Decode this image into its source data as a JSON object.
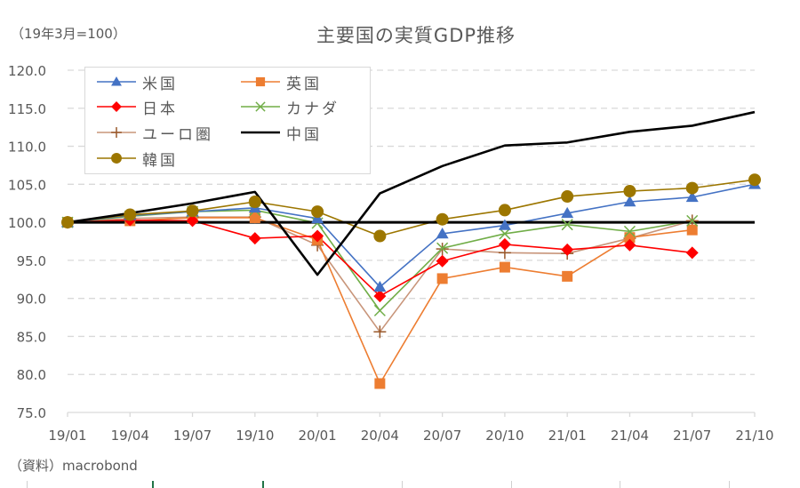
{
  "chart_data": {
    "type": "line",
    "title": "主要国の実質GDP推移",
    "unit_label": "（19年3月=100）",
    "source": "（資料）macrobond",
    "xlabel": "",
    "ylabel": "",
    "categories": [
      "19/01",
      "19/04",
      "19/07",
      "19/10",
      "20/01",
      "20/04",
      "20/07",
      "20/10",
      "21/01",
      "21/04",
      "21/07",
      "21/10"
    ],
    "ylim": [
      75,
      120
    ],
    "yticks": [
      75,
      80,
      85,
      90,
      95,
      100,
      105,
      110,
      115,
      120
    ],
    "ytick_labels": [
      "75.0",
      "80.0",
      "85.0",
      "90.0",
      "95.0",
      "100.0",
      "105.0",
      "110.0",
      "115.0",
      "120.0"
    ],
    "grid": "horizontal-dashed",
    "legend_position": "top-left",
    "reference_line": 100,
    "series": [
      {
        "name": "米国",
        "color": "#4472C4",
        "marker": "triangle",
        "values": [
          100.0,
          100.9,
          101.4,
          101.9,
          100.5,
          91.5,
          98.5,
          99.6,
          101.2,
          102.7,
          103.3,
          105.0
        ]
      },
      {
        "name": "英国",
        "color": "#ED7D31",
        "marker": "square",
        "values": [
          100.0,
          100.2,
          100.6,
          100.6,
          97.7,
          78.8,
          92.6,
          94.1,
          92.9,
          98.0,
          99.0,
          null
        ]
      },
      {
        "name": "日本",
        "color": "#FF0000",
        "marker": "diamond",
        "values": [
          100.0,
          100.3,
          100.2,
          97.9,
          98.2,
          90.3,
          94.9,
          97.1,
          96.4,
          97.0,
          96.0,
          null
        ]
      },
      {
        "name": "カナダ",
        "color": "#70AD47",
        "marker": "x",
        "values": [
          100.0,
          100.8,
          101.4,
          101.6,
          99.9,
          88.4,
          96.6,
          98.5,
          99.7,
          98.8,
          100.2,
          null
        ]
      },
      {
        "name": "ユーロ圏",
        "color": "#C8957A",
        "marker_color": "#99582A",
        "marker": "plus",
        "values": [
          100.0,
          100.5,
          100.7,
          100.7,
          97.0,
          85.6,
          96.5,
          96.0,
          95.9,
          97.9,
          100.2,
          null
        ]
      },
      {
        "name": "中国",
        "color": "#000000",
        "marker": "none",
        "values": [
          100.0,
          101.2,
          102.5,
          104.0,
          93.1,
          103.8,
          107.4,
          110.1,
          110.5,
          111.9,
          112.7,
          114.5
        ]
      },
      {
        "name": "韓国",
        "color": "#9C7600",
        "marker": "circle",
        "values": [
          100.0,
          101.0,
          101.5,
          102.7,
          101.4,
          98.2,
          100.4,
          101.6,
          103.4,
          104.1,
          104.5,
          105.6
        ]
      }
    ]
  }
}
